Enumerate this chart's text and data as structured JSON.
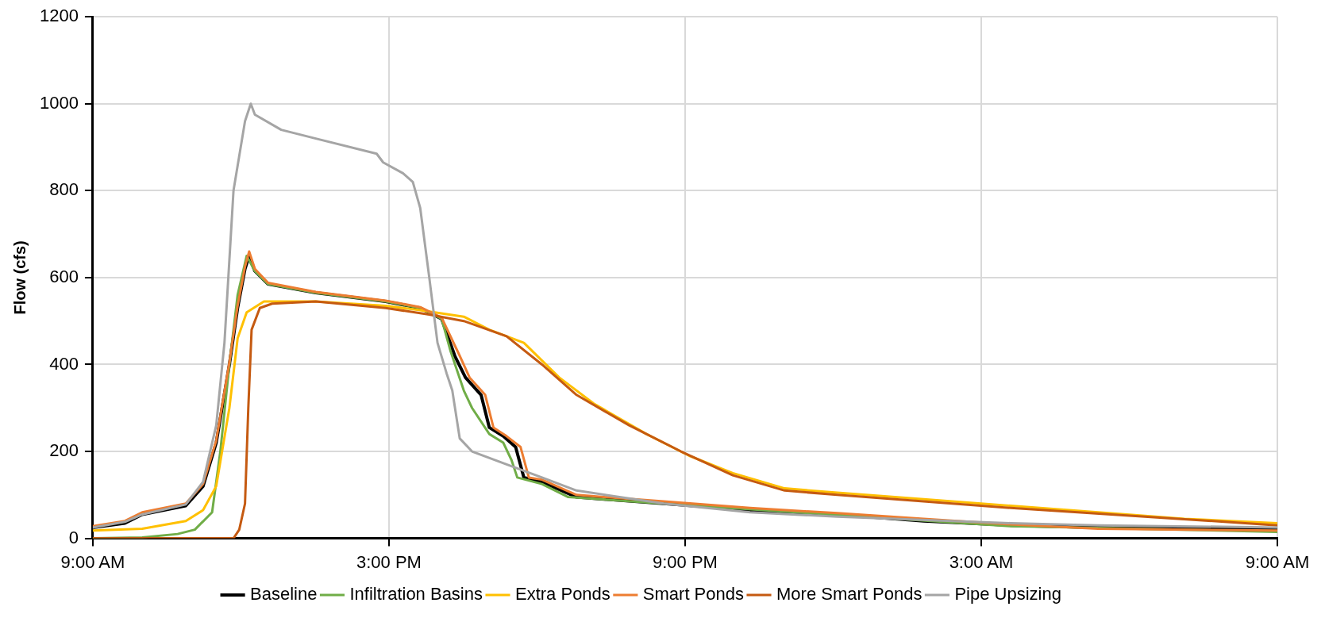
{
  "chart_data": {
    "type": "line",
    "ylabel": "Flow (cfs)",
    "xlim": [
      "--01-01T09:00",
      "--01-02T09:00"
    ],
    "ylim": [
      0,
      1200
    ],
    "xticks": [
      {
        "value": "--01-01T09:00",
        "label": "9:00 AM"
      },
      {
        "value": "--01-01T15:00",
        "label": "3:00 PM"
      },
      {
        "value": "--01-01T21:00",
        "label": "9:00 PM"
      },
      {
        "value": "--01-02T03:00",
        "label": "3:00 AM"
      },
      {
        "value": "--01-02T09:00",
        "label": "9:00 AM"
      }
    ],
    "yticks": [
      0,
      200,
      400,
      600,
      800,
      1000,
      1200
    ],
    "grid": true,
    "legend": "bottom",
    "marker": "none",
    "line_style": "solid",
    "series": [
      {
        "name": "Baseline",
        "color": "#000000",
        "x": [
          "--01-01T09:00",
          "--01-01T09:39",
          "--01-01T10:00",
          "--01-01T10:53",
          "--01-01T11:14",
          "--01-01T11:30",
          "--01-01T11:46",
          "--01-01T11:56",
          "--01-01T12:05",
          "--01-01T12:10",
          "--01-01T12:17",
          "--01-01T12:33",
          "--01-01T13:31",
          "--01-01T14:56",
          "--01-01T15:38",
          "--01-01T16:04",
          "--01-01T16:20",
          "--01-01T16:33",
          "--01-01T16:52",
          "--01-01T17:02",
          "--01-01T17:19",
          "--01-01T17:34",
          "--01-01T17:44",
          "--01-01T18:06",
          "--01-01T18:48",
          "--01-01T20:34",
          "--01-01T22:19",
          "--01-02T00:05",
          "--01-02T01:50",
          "--01-02T03:36",
          "--01-02T05:22",
          "--01-02T09:00"
        ],
        "values": [
          25,
          35,
          55,
          75,
          120,
          220,
          400,
          530,
          620,
          650,
          615,
          585,
          565,
          545,
          530,
          505,
          420,
          370,
          330,
          255,
          235,
          210,
          140,
          130,
          95,
          80,
          65,
          55,
          40,
          30,
          25,
          22
        ]
      },
      {
        "name": "Infiltration Basins",
        "color": "#70ad47",
        "x": [
          "--01-01T09:00",
          "--01-01T10:00",
          "--01-01T10:43",
          "--01-01T11:04",
          "--01-01T11:25",
          "--01-01T11:35",
          "--01-01T11:46",
          "--01-01T11:56",
          "--01-01T12:07",
          "--01-01T12:17",
          "--01-01T12:33",
          "--01-01T13:31",
          "--01-01T14:56",
          "--01-01T15:38",
          "--01-01T16:04",
          "--01-01T16:15",
          "--01-01T16:31",
          "--01-01T16:41",
          "--01-01T17:02",
          "--01-01T17:19",
          "--01-01T17:29",
          "--01-01T17:36",
          "--01-01T18:06",
          "--01-01T18:38",
          "--01-01T20:34",
          "--01-02T03:36",
          "--01-02T09:00"
        ],
        "values": [
          0,
          2,
          10,
          20,
          60,
          200,
          400,
          560,
          650,
          615,
          585,
          565,
          545,
          530,
          505,
          430,
          340,
          300,
          240,
          220,
          180,
          140,
          125,
          95,
          80,
          28,
          15
        ]
      },
      {
        "name": "Extra Ponds",
        "color": "#ffc000",
        "x": [
          "--01-01T09:00",
          "--01-01T10:00",
          "--01-01T10:53",
          "--01-01T11:14",
          "--01-01T11:30",
          "--01-01T11:46",
          "--01-01T11:56",
          "--01-01T12:07",
          "--01-01T12:28",
          "--01-01T13:31",
          "--01-01T14:56",
          "--01-01T15:38",
          "--01-01T16:31",
          "--01-01T17:02",
          "--01-01T17:44",
          "--01-01T18:27",
          "--01-01T19:09",
          "--01-01T20:13",
          "--01-01T21:05",
          "--01-01T21:58",
          "--01-01T23:01",
          "--01-02T00:05",
          "--01-02T01:50",
          "--01-02T03:36",
          "--01-02T05:22",
          "--01-02T07:07",
          "--01-02T09:00"
        ],
        "values": [
          18,
          22,
          40,
          65,
          120,
          300,
          460,
          520,
          545,
          545,
          535,
          525,
          510,
          480,
          450,
          370,
          310,
          240,
          190,
          150,
          115,
          105,
          90,
          75,
          60,
          45,
          35
        ]
      },
      {
        "name": "Smart Ponds",
        "color": "#ed7d31",
        "x": [
          "--01-01T09:00",
          "--01-01T09:39",
          "--01-01T10:00",
          "--01-01T10:53",
          "--01-01T11:14",
          "--01-01T11:30",
          "--01-01T11:46",
          "--01-01T11:56",
          "--01-01T12:05",
          "--01-01T12:10",
          "--01-01T12:17",
          "--01-01T12:33",
          "--01-01T13:31",
          "--01-01T14:56",
          "--01-01T15:38",
          "--01-01T16:04",
          "--01-01T16:26",
          "--01-01T16:38",
          "--01-01T16:57",
          "--01-01T17:07",
          "--01-01T17:23",
          "--01-01T17:40",
          "--01-01T17:50",
          "--01-01T18:06",
          "--01-01T18:48",
          "--01-01T20:34",
          "--01-01T22:19",
          "--01-02T00:05",
          "--01-02T01:50",
          "--01-02T03:36",
          "--01-02T05:22",
          "--01-02T09:00"
        ],
        "values": [
          28,
          40,
          60,
          80,
          125,
          225,
          405,
          535,
          625,
          660,
          620,
          588,
          567,
          547,
          532,
          508,
          420,
          370,
          330,
          255,
          235,
          210,
          140,
          135,
          100,
          85,
          70,
          58,
          45,
          32,
          22,
          18
        ]
      },
      {
        "name": "More Smart Ponds",
        "color": "#c55a11",
        "x": [
          "--01-01T09:00",
          "--01-01T11:51",
          "--01-01T11:58",
          "--01-01T12:05",
          "--01-01T12:09",
          "--01-01T12:13",
          "--01-01T12:23",
          "--01-01T12:38",
          "--01-01T13:31",
          "--01-01T14:56",
          "--01-01T15:49",
          "--01-01T16:31",
          "--01-01T17:23",
          "--01-01T18:06",
          "--01-01T18:48",
          "--01-01T19:52",
          "--01-01T20:55",
          "--01-01T21:58",
          "--01-01T23:01",
          "--01-02T00:05",
          "--01-02T03:36",
          "--01-02T09:00"
        ],
        "values": [
          0,
          0,
          20,
          80,
          300,
          480,
          530,
          540,
          545,
          530,
          515,
          500,
          465,
          400,
          330,
          260,
          200,
          145,
          110,
          100,
          70,
          30
        ]
      },
      {
        "name": "Pipe Upsizing",
        "color": "#a5a5a5",
        "x": [
          "--01-01T09:00",
          "--01-01T09:39",
          "--01-01T10:00",
          "--01-01T10:53",
          "--01-01T11:14",
          "--01-01T11:30",
          "--01-01T11:40",
          "--01-01T11:51",
          "--01-01T12:05",
          "--01-01T12:12",
          "--01-01T12:17",
          "--01-01T12:49",
          "--01-01T13:31",
          "--01-01T14:45",
          "--01-01T14:53",
          "--01-01T15:17",
          "--01-01T15:29",
          "--01-01T15:38",
          "--01-01T15:49",
          "--01-01T15:59",
          "--01-01T16:10",
          "--01-01T16:17",
          "--01-01T16:26",
          "--01-01T16:41",
          "--01-01T17:23",
          "--01-01T18:06",
          "--01-01T18:48",
          "--01-01T20:34",
          "--01-01T22:19",
          "--01-02T00:05",
          "--01-02T03:36",
          "--01-02T05:22",
          "--01-02T09:00"
        ],
        "values": [
          25,
          38,
          55,
          78,
          130,
          260,
          450,
          800,
          960,
          1000,
          975,
          940,
          920,
          885,
          865,
          840,
          820,
          760,
          600,
          450,
          380,
          340,
          230,
          200,
          170,
          140,
          110,
          80,
          60,
          50,
          35,
          30,
          25
        ]
      }
    ]
  }
}
